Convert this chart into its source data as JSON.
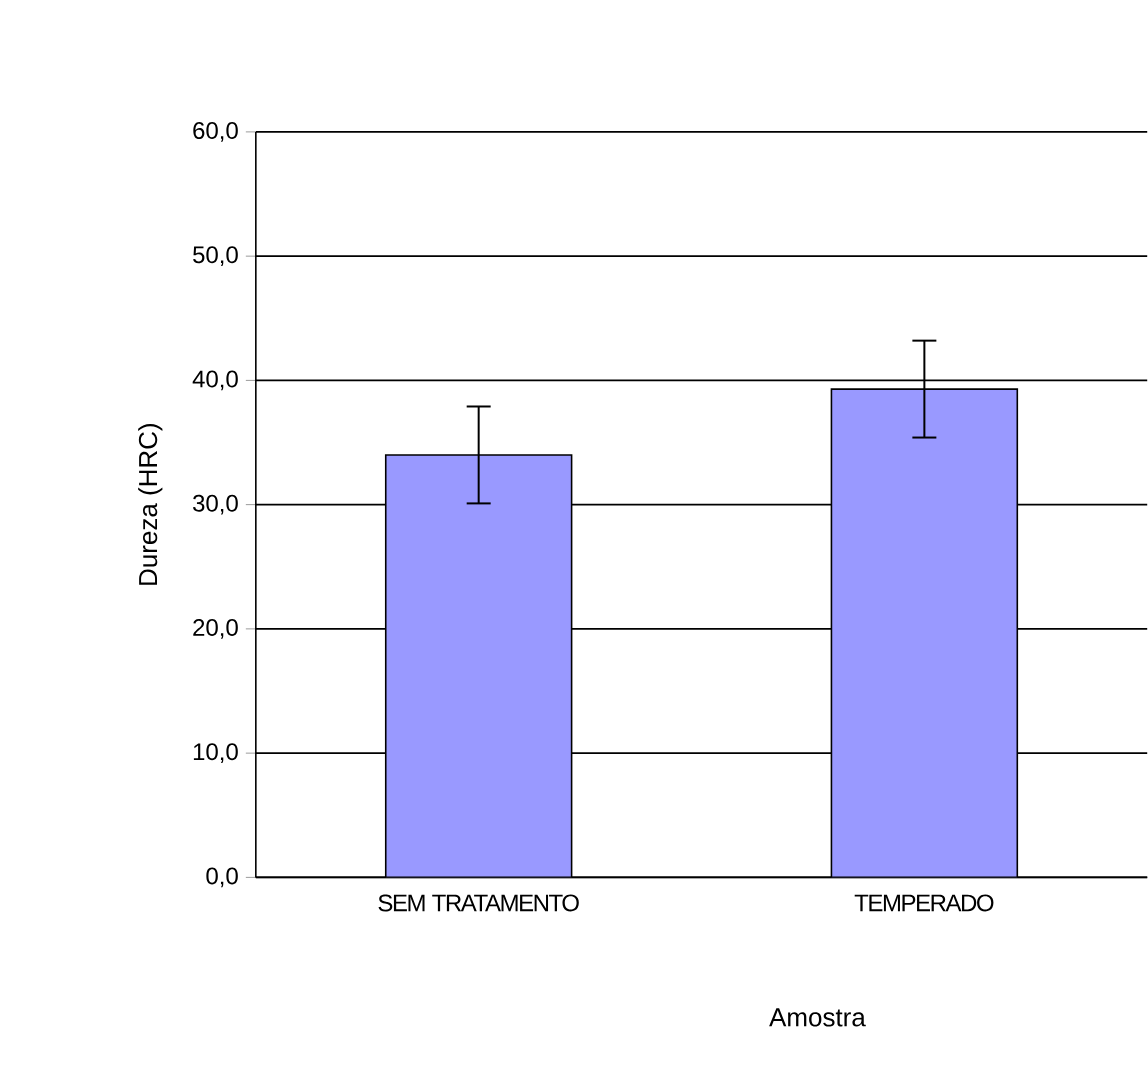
{
  "chart_data": {
    "type": "bar",
    "xlabel": "Amostra",
    "ylabel": "Dureza (HRC)",
    "categories": [
      "SEM TRATAMENTO",
      "TEMPERADO"
    ],
    "values": [
      34.0,
      39.3
    ],
    "errors": [
      3.9,
      3.9
    ],
    "color": "#9999ff",
    "ylim": [
      0,
      60
    ],
    "yticks": [
      {
        "value": 0,
        "label": "0,0"
      },
      {
        "value": 10,
        "label": "10,0"
      },
      {
        "value": 20,
        "label": "20,0"
      },
      {
        "value": 30,
        "label": "30,0"
      },
      {
        "value": 40,
        "label": "40,0"
      },
      {
        "value": 50,
        "label": "50,0"
      },
      {
        "value": 60,
        "label": "60,0"
      }
    ],
    "grid": "y"
  }
}
